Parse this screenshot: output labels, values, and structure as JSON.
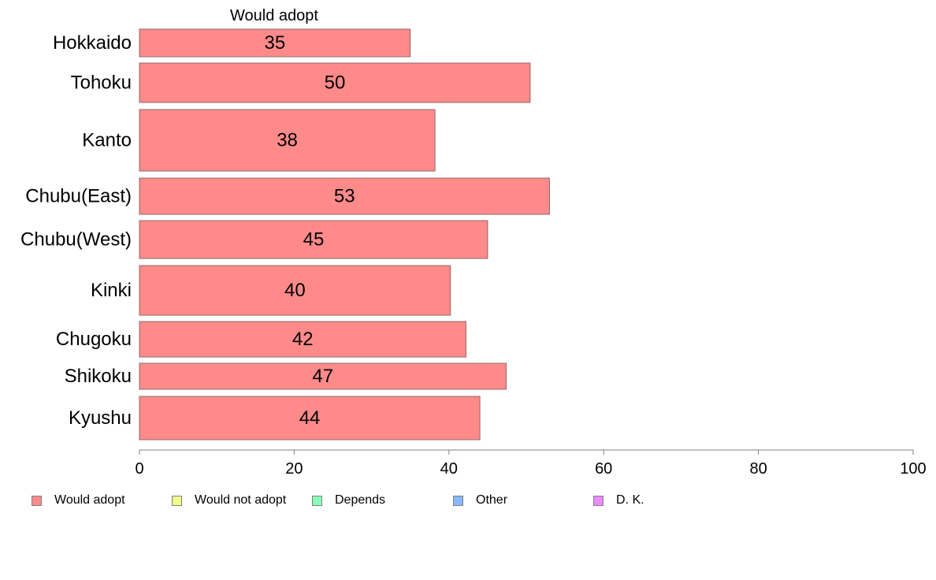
{
  "chart_data": {
    "type": "bar",
    "orientation": "horizontal",
    "series_title": "Would adopt",
    "categories": [
      "Hokkaido",
      "Tohoku",
      "Kanto",
      "Chubu(East)",
      "Chubu(West)",
      "Kinki",
      "Chugoku",
      "Shikoku",
      "Kyushu"
    ],
    "values": [
      35,
      50.5,
      38.2,
      53,
      45,
      40.2,
      42.2,
      47.4,
      44
    ],
    "value_labels": [
      "35",
      "50",
      "38",
      "53",
      "45",
      "40",
      "42",
      "47",
      "44"
    ],
    "xlim": [
      0,
      100
    ],
    "x_ticks": [
      "0",
      "20",
      "40",
      "60",
      "80",
      "100"
    ],
    "bar_color": "#ff8a8a",
    "legend_position": "bottom",
    "legend": [
      {
        "label": "Would adopt",
        "color": "#ff8a8a"
      },
      {
        "label": "Would not adopt",
        "color": "#eeff8a"
      },
      {
        "label": "Depends",
        "color": "#8affb8"
      },
      {
        "label": "Other",
        "color": "#8ab8ff"
      },
      {
        "label": "D. K.",
        "color": "#ee8aff"
      }
    ]
  }
}
